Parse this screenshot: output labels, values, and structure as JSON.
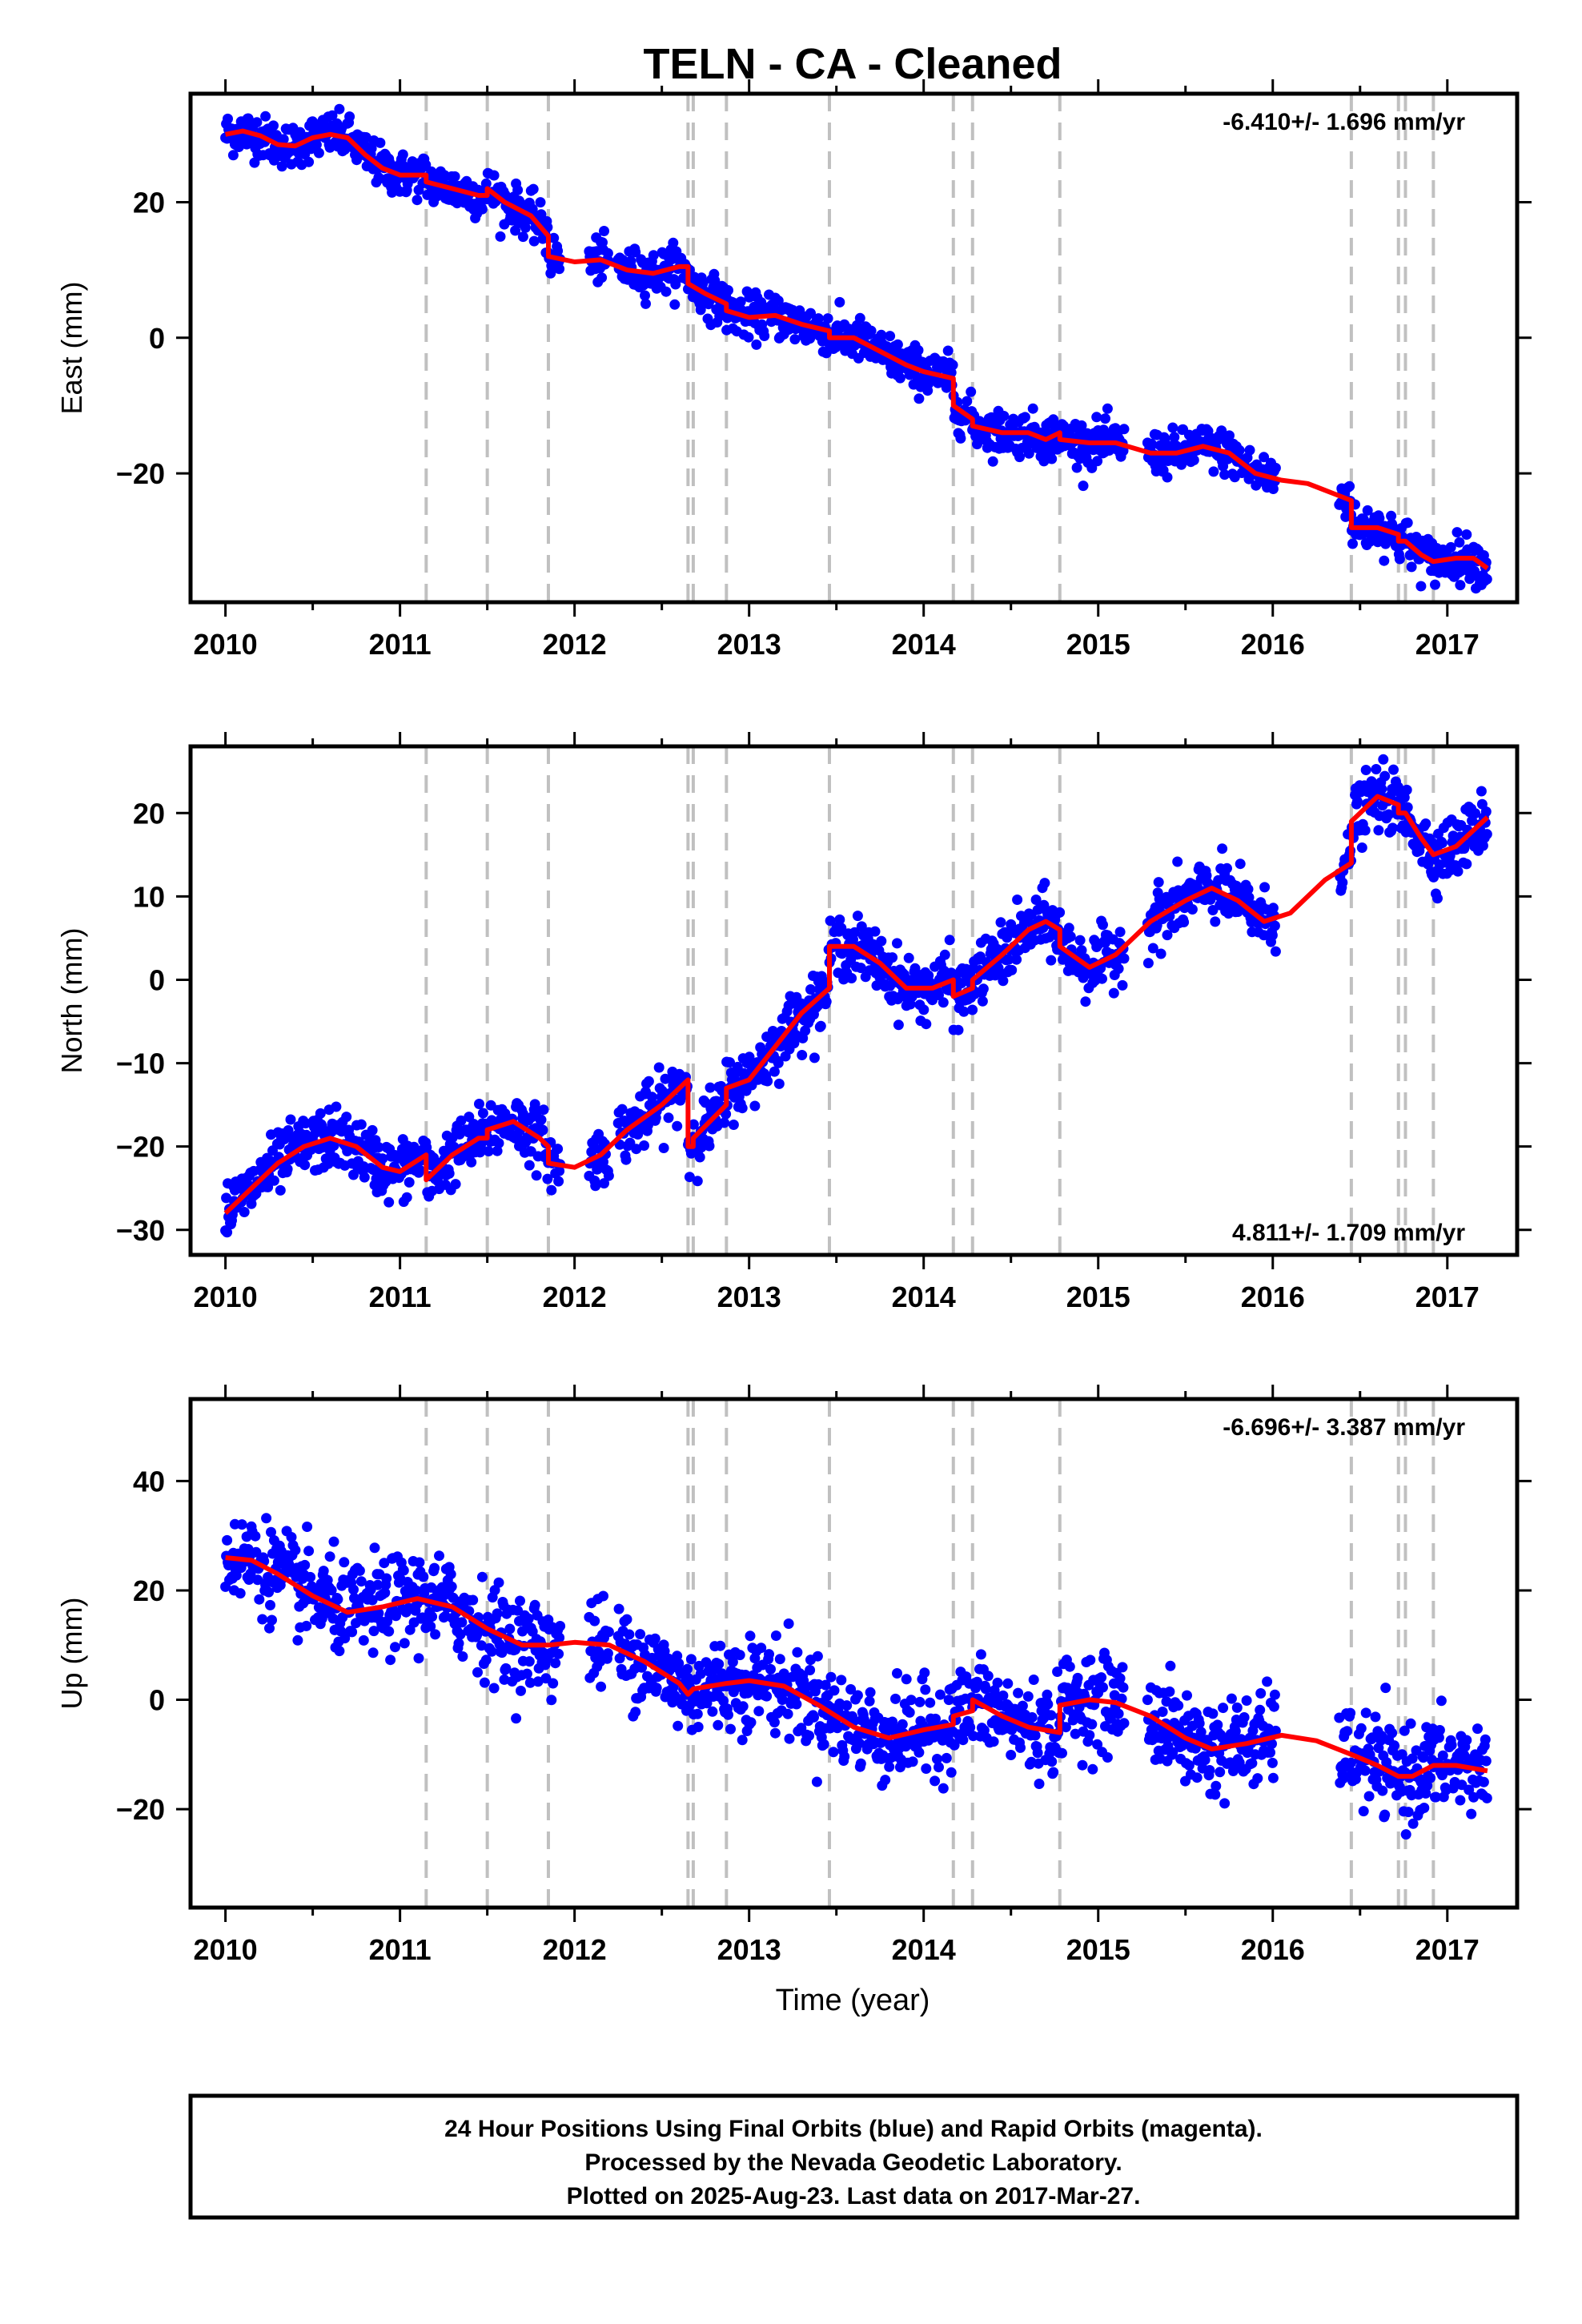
{
  "title": "TELN  - CA - Cleaned",
  "xlabel": "Time (year)",
  "footer_lines": [
    "24 Hour Positions Using Final Orbits (blue) and Rapid Orbits (magenta).",
    "Processed by the Nevada Geodetic Laboratory.",
    "Plotted on 2025-Aug-23. Last data on 2017-Mar-27."
  ],
  "colors": {
    "points": "#0000ff",
    "model": "#ff0000",
    "events": "#c0c0c0"
  },
  "chart_data": [
    {
      "type": "scatter",
      "ylabel": "East (mm)",
      "rate_label": "-6.410+/- 1.696 mm/yr",
      "rate_position": "top-right",
      "xlim": [
        2009.8,
        2017.4
      ],
      "ylim": [
        -39,
        36
      ],
      "x_ticks": [
        2010,
        2011,
        2012,
        2013,
        2014,
        2015,
        2016,
        2017
      ],
      "y_ticks": [
        -20,
        0,
        20
      ],
      "event_lines": [
        2011.15,
        2011.5,
        2011.85,
        2012.65,
        2012.68,
        2012.87,
        2013.46,
        2014.17,
        2014.28,
        2014.78,
        2016.45,
        2016.72,
        2016.76,
        2016.92
      ],
      "model": [
        [
          2010.0,
          30
        ],
        [
          2010.1,
          30.5
        ],
        [
          2010.2,
          29.8
        ],
        [
          2010.3,
          28.5
        ],
        [
          2010.4,
          28.3
        ],
        [
          2010.5,
          29.5
        ],
        [
          2010.6,
          30
        ],
        [
          2010.7,
          29.5
        ],
        [
          2010.8,
          27
        ],
        [
          2010.9,
          25
        ],
        [
          2011.0,
          24
        ],
        [
          2011.15,
          24
        ],
        [
          2011.15,
          23
        ],
        [
          2011.3,
          22
        ],
        [
          2011.45,
          21
        ],
        [
          2011.5,
          21
        ],
        [
          2011.5,
          22
        ],
        [
          2011.6,
          20
        ],
        [
          2011.75,
          18
        ],
        [
          2011.85,
          15
        ],
        [
          2011.85,
          12
        ],
        [
          2012.0,
          11.2
        ],
        [
          2012.15,
          11.5
        ],
        [
          2012.3,
          10
        ],
        [
          2012.45,
          9.5
        ],
        [
          2012.6,
          10.5
        ],
        [
          2012.65,
          10.5
        ],
        [
          2012.65,
          8
        ],
        [
          2012.75,
          6.5
        ],
        [
          2012.87,
          5
        ],
        [
          2012.87,
          4
        ],
        [
          2013.0,
          3
        ],
        [
          2013.15,
          3.3
        ],
        [
          2013.3,
          2
        ],
        [
          2013.46,
          1
        ],
        [
          2013.46,
          0
        ],
        [
          2013.6,
          0
        ],
        [
          2013.75,
          -2
        ],
        [
          2013.9,
          -4
        ],
        [
          2014.0,
          -5
        ],
        [
          2014.17,
          -6
        ],
        [
          2014.17,
          -10
        ],
        [
          2014.28,
          -12
        ],
        [
          2014.28,
          -13
        ],
        [
          2014.45,
          -14
        ],
        [
          2014.6,
          -14
        ],
        [
          2014.7,
          -15
        ],
        [
          2014.78,
          -14
        ],
        [
          2014.78,
          -15
        ],
        [
          2014.95,
          -15.5
        ],
        [
          2015.1,
          -15.5
        ],
        [
          2015.3,
          -17
        ],
        [
          2015.45,
          -17
        ],
        [
          2015.6,
          -16
        ],
        [
          2015.75,
          -17
        ],
        [
          2015.9,
          -20
        ],
        [
          2016.05,
          -21
        ],
        [
          2016.2,
          -21.5
        ],
        [
          2016.35,
          -23
        ],
        [
          2016.45,
          -24
        ],
        [
          2016.45,
          -28
        ],
        [
          2016.6,
          -28
        ],
        [
          2016.72,
          -29
        ],
        [
          2016.72,
          -30
        ],
        [
          2016.76,
          -30
        ],
        [
          2016.85,
          -32
        ],
        [
          2016.92,
          -33
        ],
        [
          2017.05,
          -32.5
        ],
        [
          2017.15,
          -32.5
        ],
        [
          2017.23,
          -34
        ]
      ]
    },
    {
      "type": "scatter",
      "ylabel": "North (mm)",
      "rate_label": "4.811+/- 1.709 mm/yr",
      "rate_position": "bottom-right",
      "xlim": [
        2009.8,
        2017.4
      ],
      "ylim": [
        -33,
        28
      ],
      "x_ticks": [
        2010,
        2011,
        2012,
        2013,
        2014,
        2015,
        2016,
        2017
      ],
      "y_ticks": [
        -30,
        -20,
        -10,
        0,
        10,
        20
      ],
      "event_lines": [
        2011.15,
        2011.5,
        2011.85,
        2012.65,
        2012.68,
        2012.87,
        2013.46,
        2014.17,
        2014.28,
        2014.78,
        2016.45,
        2016.72,
        2016.76,
        2016.92
      ],
      "model": [
        [
          2010.0,
          -28
        ],
        [
          2010.15,
          -25
        ],
        [
          2010.3,
          -22
        ],
        [
          2010.45,
          -20
        ],
        [
          2010.6,
          -19
        ],
        [
          2010.75,
          -20
        ],
        [
          2010.9,
          -22.5
        ],
        [
          2011.0,
          -23
        ],
        [
          2011.15,
          -21
        ],
        [
          2011.15,
          -24
        ],
        [
          2011.3,
          -21
        ],
        [
          2011.45,
          -19
        ],
        [
          2011.5,
          -19
        ],
        [
          2011.5,
          -18
        ],
        [
          2011.65,
          -17
        ],
        [
          2011.8,
          -19
        ],
        [
          2011.85,
          -20
        ],
        [
          2011.85,
          -22
        ],
        [
          2012.0,
          -22.5
        ],
        [
          2012.15,
          -21
        ],
        [
          2012.3,
          -18
        ],
        [
          2012.5,
          -15
        ],
        [
          2012.65,
          -12
        ],
        [
          2012.65,
          -20
        ],
        [
          2012.68,
          -20
        ],
        [
          2012.68,
          -19
        ],
        [
          2012.87,
          -15
        ],
        [
          2012.87,
          -13
        ],
        [
          2013.0,
          -12
        ],
        [
          2013.15,
          -8
        ],
        [
          2013.3,
          -4
        ],
        [
          2013.46,
          -1
        ],
        [
          2013.46,
          4
        ],
        [
          2013.6,
          4
        ],
        [
          2013.75,
          2
        ],
        [
          2013.9,
          -1
        ],
        [
          2014.05,
          -1
        ],
        [
          2014.17,
          0
        ],
        [
          2014.17,
          -2
        ],
        [
          2014.28,
          -1
        ],
        [
          2014.28,
          0
        ],
        [
          2014.45,
          3
        ],
        [
          2014.6,
          6
        ],
        [
          2014.7,
          7
        ],
        [
          2014.78,
          6
        ],
        [
          2014.78,
          4
        ],
        [
          2014.95,
          1.5
        ],
        [
          2015.1,
          3
        ],
        [
          2015.3,
          7
        ],
        [
          2015.5,
          9.5
        ],
        [
          2015.65,
          11
        ],
        [
          2015.8,
          9.5
        ],
        [
          2015.95,
          7
        ],
        [
          2016.1,
          8
        ],
        [
          2016.3,
          12
        ],
        [
          2016.45,
          14
        ],
        [
          2016.45,
          19
        ],
        [
          2016.6,
          22
        ],
        [
          2016.72,
          21
        ],
        [
          2016.72,
          20
        ],
        [
          2016.76,
          20
        ],
        [
          2016.85,
          17
        ],
        [
          2016.92,
          15
        ],
        [
          2017.05,
          16
        ],
        [
          2017.23,
          19.5
        ]
      ]
    },
    {
      "type": "scatter",
      "ylabel": "Up (mm)",
      "rate_label": "-6.696+/- 3.387 mm/yr",
      "rate_position": "top-right",
      "xlim": [
        2009.8,
        2017.4
      ],
      "ylim": [
        -38,
        55
      ],
      "x_ticks": [
        2010,
        2011,
        2012,
        2013,
        2014,
        2015,
        2016,
        2017
      ],
      "y_ticks": [
        -20,
        0,
        20,
        40
      ],
      "event_lines": [
        2011.15,
        2011.5,
        2011.85,
        2012.65,
        2012.68,
        2012.87,
        2013.46,
        2014.17,
        2014.28,
        2014.78,
        2016.45,
        2016.72,
        2016.76,
        2016.92
      ],
      "model": [
        [
          2010.0,
          26
        ],
        [
          2010.15,
          25.5
        ],
        [
          2010.3,
          23
        ],
        [
          2010.5,
          19
        ],
        [
          2010.7,
          16
        ],
        [
          2010.9,
          17
        ],
        [
          2011.1,
          18.5
        ],
        [
          2011.3,
          17
        ],
        [
          2011.5,
          13
        ],
        [
          2011.7,
          10
        ],
        [
          2011.85,
          10
        ],
        [
          2012.0,
          10.5
        ],
        [
          2012.2,
          10
        ],
        [
          2012.4,
          7
        ],
        [
          2012.6,
          3
        ],
        [
          2012.65,
          1
        ],
        [
          2012.68,
          2
        ],
        [
          2012.87,
          3
        ],
        [
          2013.0,
          3.5
        ],
        [
          2013.2,
          2.5
        ],
        [
          2013.4,
          -1
        ],
        [
          2013.6,
          -5
        ],
        [
          2013.8,
          -7
        ],
        [
          2014.0,
          -5.5
        ],
        [
          2014.17,
          -4.5
        ],
        [
          2014.17,
          -3
        ],
        [
          2014.28,
          -2
        ],
        [
          2014.28,
          0
        ],
        [
          2014.45,
          -3
        ],
        [
          2014.6,
          -5
        ],
        [
          2014.78,
          -6
        ],
        [
          2014.78,
          -1
        ],
        [
          2014.95,
          0
        ],
        [
          2015.1,
          -0.5
        ],
        [
          2015.3,
          -3
        ],
        [
          2015.5,
          -7
        ],
        [
          2015.65,
          -9
        ],
        [
          2015.85,
          -8
        ],
        [
          2016.05,
          -6.5
        ],
        [
          2016.25,
          -7.5
        ],
        [
          2016.45,
          -10
        ],
        [
          2016.6,
          -12
        ],
        [
          2016.72,
          -14
        ],
        [
          2016.8,
          -14
        ],
        [
          2016.92,
          -12
        ],
        [
          2017.05,
          -12
        ],
        [
          2017.23,
          -13
        ]
      ]
    }
  ]
}
